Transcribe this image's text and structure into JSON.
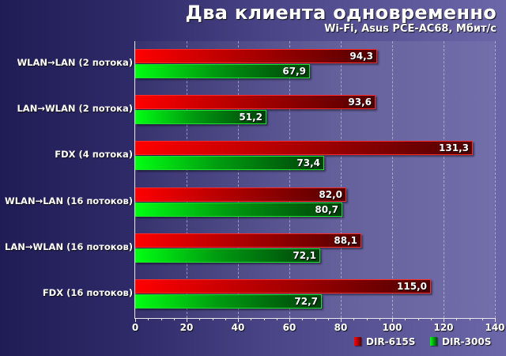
{
  "chart_data": {
    "type": "bar",
    "orientation": "horizontal",
    "title": "Два клиента одновременно",
    "subtitle": "Wi-Fi, Asus PCE-AC68, Мбит/с",
    "categories": [
      "WLAN→LAN (2 потока)",
      "LAN→WLAN (2 потока)",
      "FDX (4 потока)",
      "WLAN→LAN (16 потоков)",
      "LAN→WLAN (16 потоков)",
      "FDX (16 потоков)"
    ],
    "series": [
      {
        "name": "DIR-615S",
        "color": "#ff0000",
        "values": [
          94.3,
          93.6,
          131.3,
          82.0,
          88.1,
          115.0
        ],
        "labels": [
          "94,3",
          "93,6",
          "131,3",
          "82,0",
          "88,1",
          "115,0"
        ]
      },
      {
        "name": "DIR-300S",
        "color": "#00ff12",
        "values": [
          67.9,
          51.2,
          73.4,
          80.7,
          72.1,
          72.7
        ],
        "labels": [
          "67,9",
          "51,2",
          "73,4",
          "80,7",
          "72,1",
          "72,7"
        ]
      }
    ],
    "xlabel": "",
    "ylabel": "",
    "xlim": [
      0,
      140
    ],
    "xticks": [
      "0",
      "20",
      "40",
      "60",
      "80",
      "100",
      "120",
      "140"
    ],
    "grid": "vertical dashed",
    "legend_position": "bottom-right"
  }
}
